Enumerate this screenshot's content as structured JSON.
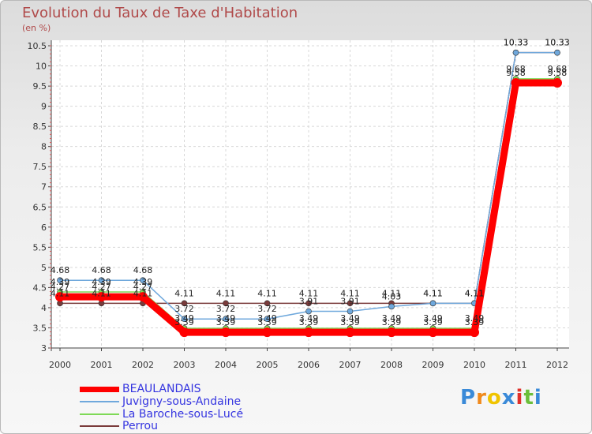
{
  "chart_data": {
    "type": "line",
    "title": "Evolution du Taux de Taxe d'Habitation",
    "ylabel": "(en %)",
    "xlabel": "",
    "ylim": [
      3,
      10.5
    ],
    "yticks": [
      "3",
      "3.5",
      "4",
      "4.5",
      "5",
      "5.5",
      "6",
      "6.5",
      "7",
      "7.5",
      "8",
      "8.5",
      "9",
      "9.5",
      "10",
      "10.5"
    ],
    "categories": [
      "2000",
      "2001",
      "2002",
      "2003",
      "2004",
      "2005",
      "2006",
      "2007",
      "2008",
      "2009",
      "2010",
      "2011",
      "2012"
    ],
    "series": [
      {
        "name": "BEAULANDAIS",
        "color": "#ff0000",
        "values": [
          4.27,
          4.27,
          4.27,
          3.39,
          3.39,
          3.39,
          3.39,
          3.39,
          3.39,
          3.39,
          3.39,
          9.58,
          9.58
        ],
        "labels": [
          "4.27",
          "4.27",
          "4.27",
          "3.39",
          "3.39",
          "3.39",
          "3.39",
          "3.39",
          "3.39",
          "3.39",
          "3.39",
          "9.58",
          "9.58"
        ]
      },
      {
        "name": "Juvigny-sous-Andaine",
        "color": "#6fa8dc",
        "values": [
          4.68,
          4.68,
          4.68,
          3.72,
          3.72,
          3.72,
          3.91,
          3.91,
          4.03,
          4.11,
          4.11,
          10.33,
          10.33
        ],
        "labels": [
          "4.68",
          "4.68",
          "4.68",
          "3.72",
          "3.72",
          "3.72",
          "3.91",
          "3.91",
          "4.03",
          "4.11",
          "4.11",
          "10.33",
          "10.33"
        ]
      },
      {
        "name": "La Baroche-sous-Lucé",
        "color": "#7ed957",
        "values": [
          4.39,
          4.39,
          4.39,
          3.49,
          3.49,
          3.49,
          3.49,
          3.49,
          3.49,
          3.49,
          3.49,
          9.68,
          9.68
        ],
        "labels": [
          "4.39",
          "4.39",
          "4.39",
          "3.49",
          "3.49",
          "3.49",
          "3.49",
          "3.49",
          "3.49",
          "3.49",
          "3.49",
          "9.68",
          "9.68"
        ]
      },
      {
        "name": "Perrou",
        "color": "#7a3b3b",
        "values": [
          4.11,
          4.11,
          4.11,
          4.11,
          4.11,
          4.11,
          4.11,
          4.11,
          4.11,
          4.11,
          4.11,
          10.33,
          10.33
        ],
        "labels": [
          "4.11",
          "4.11",
          "4.11",
          "4.11",
          "4.11",
          "4.11",
          "4.11",
          "4.11",
          "4.11",
          "4.11",
          "4.11",
          "10.33",
          "10.33"
        ]
      }
    ]
  },
  "legend": {
    "items": [
      {
        "label": "BEAULANDAIS",
        "color": "#ff0000"
      },
      {
        "label": "Juvigny-sous-Andaine",
        "color": "#6fa8dc"
      },
      {
        "label": "La Baroche-sous-Lucé",
        "color": "#7ed957"
      },
      {
        "label": "Perrou",
        "color": "#7a3b3b"
      }
    ]
  },
  "logo": {
    "letters": [
      "P",
      "r",
      "o",
      "x",
      "i",
      "t",
      "i"
    ],
    "colors": [
      "#3a8ad8",
      "#f08a1c",
      "#f0c400",
      "#3a8ad8",
      "#e0302a",
      "#6cbf3a",
      "#3a8ad8"
    ]
  }
}
